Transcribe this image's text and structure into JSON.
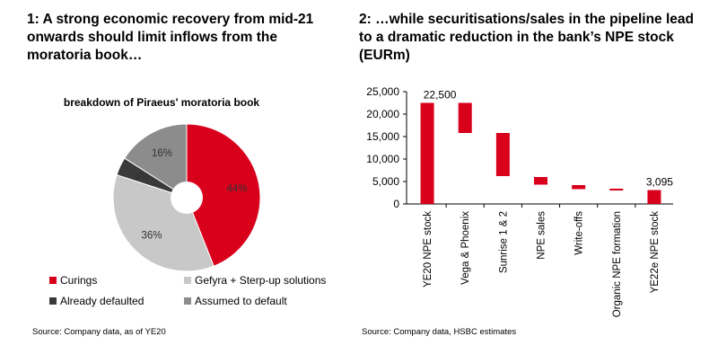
{
  "panel1": {
    "title": "1: A strong economic recovery from mid-21 onwards should limit inflows from the moratoria book…",
    "source": "Source: Company data, as of YE20"
  },
  "panel2": {
    "title": "2: …while securitisations/sales in the pipeline lead to a dramatic reduction in the bank’s NPE stock (EURm)",
    "source": "Source: Company data, HSBC estimates"
  },
  "chart_data": [
    {
      "type": "pie",
      "donut": true,
      "title": "breakdown of Piraeus' moratoria book",
      "labels": [
        "Curings",
        "Gefyra + Sterp-up solutions",
        "Already defaulted",
        "Assumed to default"
      ],
      "values": [
        44,
        36,
        4,
        16
      ],
      "value_labels": [
        "44%",
        "36%",
        "4%",
        "16%"
      ],
      "colors": [
        "#d9001b",
        "#c8c8c8",
        "#3a3a3a",
        "#8c8c8c"
      ],
      "legend_position": "bottom"
    },
    {
      "type": "bar",
      "subtype": "waterfall",
      "categories": [
        "YE20 NPE stock",
        "Vega & Phoenix",
        "Sunrise 1 & 2",
        "NPE sales",
        "Write-offs",
        "Organic NPE formation",
        "YE22e NPE stock"
      ],
      "ranges": [
        [
          0,
          22500
        ],
        [
          15800,
          22500
        ],
        [
          6200,
          15800
        ],
        [
          4300,
          6000
        ],
        [
          3300,
          4200
        ],
        [
          3000,
          3400
        ],
        [
          0,
          3095
        ]
      ],
      "data_labels": [
        "22,500",
        "",
        "",
        "",
        "",
        "",
        "3,095"
      ],
      "ylim": [
        0,
        25000
      ],
      "yticks": [
        0,
        5000,
        10000,
        15000,
        20000,
        25000
      ],
      "ytick_labels": [
        "0",
        "5,000",
        "10,000",
        "15,000",
        "20,000",
        "25,000"
      ],
      "color": "#d9001b",
      "grid": false
    }
  ]
}
